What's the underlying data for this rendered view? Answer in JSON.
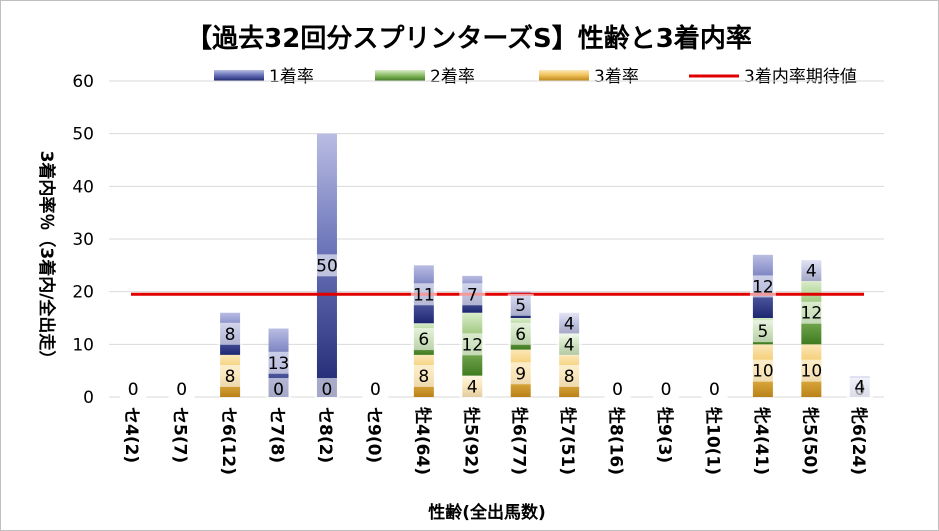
{
  "chart_data": {
    "type": "bar",
    "stacked": true,
    "title": "【過去32回分スプリンターズS】性齢と3着内率",
    "xlabel": "性齢(全出馬数)",
    "ylabel": "3着内率％（3着内/全出走）",
    "ylim": [
      0,
      60
    ],
    "yticks": [
      0,
      10,
      20,
      30,
      40,
      50,
      60
    ],
    "grid": true,
    "legend_position": "top",
    "categories": [
      "セ4(2)",
      "セ5(7)",
      "セ6(12)",
      "セ7(8)",
      "セ8(2)",
      "セ9(0)",
      "牡4(64)",
      "牡5(92)",
      "牡6(77)",
      "牡7(51)",
      "牡8(16)",
      "牡9(3)",
      "牡10(1)",
      "牝4(41)",
      "牝5(50)",
      "牝6(24)"
    ],
    "series": [
      {
        "name": "3着率",
        "color": "#e0a93a",
        "values": [
          0,
          0,
          8,
          0,
          0,
          0,
          8,
          4,
          9,
          8,
          0,
          0,
          0,
          10,
          10,
          0
        ]
      },
      {
        "name": "2着率",
        "color": "#5f9a3c",
        "values": [
          0,
          0,
          0,
          0,
          0,
          0,
          6,
          12,
          6,
          4,
          0,
          0,
          0,
          5,
          12,
          0
        ]
      },
      {
        "name": "1着率",
        "color": "#2e3a87",
        "values": [
          0,
          0,
          8,
          13,
          50,
          0,
          11,
          7,
          5,
          4,
          0,
          0,
          0,
          12,
          4,
          4
        ]
      }
    ],
    "reference_line": {
      "name": "3着内率期待値",
      "color": "#e00000",
      "value": 19.5
    },
    "tick_labels": [
      "0",
      "10",
      "20",
      "30",
      "40",
      "50",
      "60"
    ]
  }
}
